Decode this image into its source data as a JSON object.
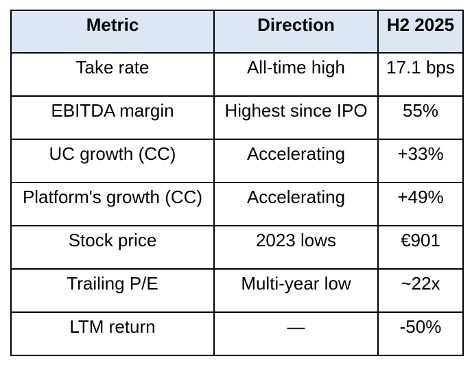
{
  "table": {
    "columns": [
      "Metric",
      "Direction",
      "H2 2025"
    ],
    "rows": [
      [
        "Take rate",
        "All-time high",
        "17.1 bps"
      ],
      [
        "EBITDA margin",
        "Highest since IPO",
        "55%"
      ],
      [
        "UC growth (CC)",
        "Accelerating",
        "+33%"
      ],
      [
        "Platform's growth (CC)",
        "Accelerating",
        "+49%"
      ],
      [
        "Stock price",
        "2023 lows",
        "€901"
      ],
      [
        "Trailing P/E",
        "Multi-year low",
        "~22x"
      ],
      [
        "LTM return",
        "—",
        "-50%"
      ]
    ]
  }
}
